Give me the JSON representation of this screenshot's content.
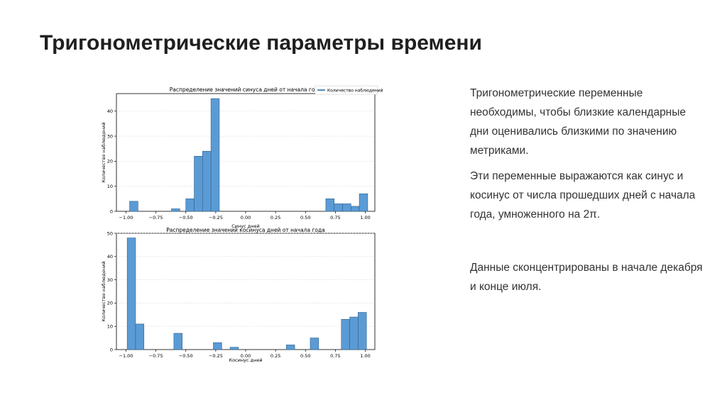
{
  "slide": {
    "title": "Тригонометрические параметры времени",
    "paragraphs": [
      "Тригонометрические переменные необходимы, чтобы близкие календарные дни оценивались близкими по значению метриками.",
      "Эти переменные выражаются как синус и косинус от числа прошедших дней с начала года, умноженного на 2π.",
      "Данные сконцентрированы в начале декабря и конце июля."
    ]
  },
  "colors": {
    "bar_fill": "#5b9bd5",
    "bar_stroke": "#2f5f8a",
    "grid": "#d9d9d9"
  },
  "chart_data": [
    {
      "type": "bar",
      "title": "Распределение значений синуса дней от начала года",
      "xlabel": "Синус дней",
      "ylabel": "Количество наблюдений",
      "legend": [
        "Количество наблюдений"
      ],
      "legend_position": "top-right",
      "grid": true,
      "xlim": [
        -1.08,
        1.08
      ],
      "ylim": [
        0,
        47
      ],
      "bin_width": 0.07,
      "xticks": [
        -1.0,
        -0.75,
        -0.5,
        -0.25,
        0.0,
        0.25,
        0.5,
        0.75,
        1.0
      ],
      "xtick_labels": [
        "−1.00",
        "−0.75",
        "−0.50",
        "−0.25",
        "0.00",
        "0.25",
        "0.50",
        "0.75",
        "1.00"
      ],
      "yticks": [
        0,
        10,
        20,
        30,
        40
      ],
      "ytick_labels": [
        "0",
        "10",
        "20",
        "30",
        "40"
      ],
      "bins_start": [
        -0.97,
        -0.62,
        -0.5,
        -0.43,
        -0.36,
        -0.29,
        0.67,
        0.74,
        0.81,
        0.88,
        0.95
      ],
      "values": [
        4,
        1,
        5,
        22,
        24,
        45,
        5,
        3,
        3,
        2,
        7
      ]
    },
    {
      "type": "bar",
      "title": "Распределение значений косинуса дней от начала года",
      "xlabel": "Косинус дней",
      "ylabel": "Количество наблюдений",
      "grid": true,
      "xlim": [
        -1.08,
        1.08
      ],
      "ylim": [
        0,
        50
      ],
      "bin_width": 0.07,
      "xticks": [
        -1.0,
        -0.75,
        -0.5,
        -0.25,
        0.0,
        0.25,
        0.5,
        0.75,
        1.0
      ],
      "xtick_labels": [
        "−1.00",
        "−0.75",
        "−0.50",
        "−0.25",
        "0.00",
        "0.25",
        "0.50",
        "0.75",
        "1.00"
      ],
      "yticks": [
        0,
        10,
        20,
        30,
        40,
        50
      ],
      "ytick_labels": [
        "0",
        "10",
        "20",
        "30",
        "40",
        "50"
      ],
      "bins_start": [
        -0.99,
        -0.92,
        -0.6,
        -0.27,
        -0.13,
        0.34,
        0.54,
        0.8,
        0.87,
        0.94
      ],
      "values": [
        48,
        11,
        7,
        3,
        1,
        2,
        5,
        13,
        14,
        16
      ]
    }
  ]
}
